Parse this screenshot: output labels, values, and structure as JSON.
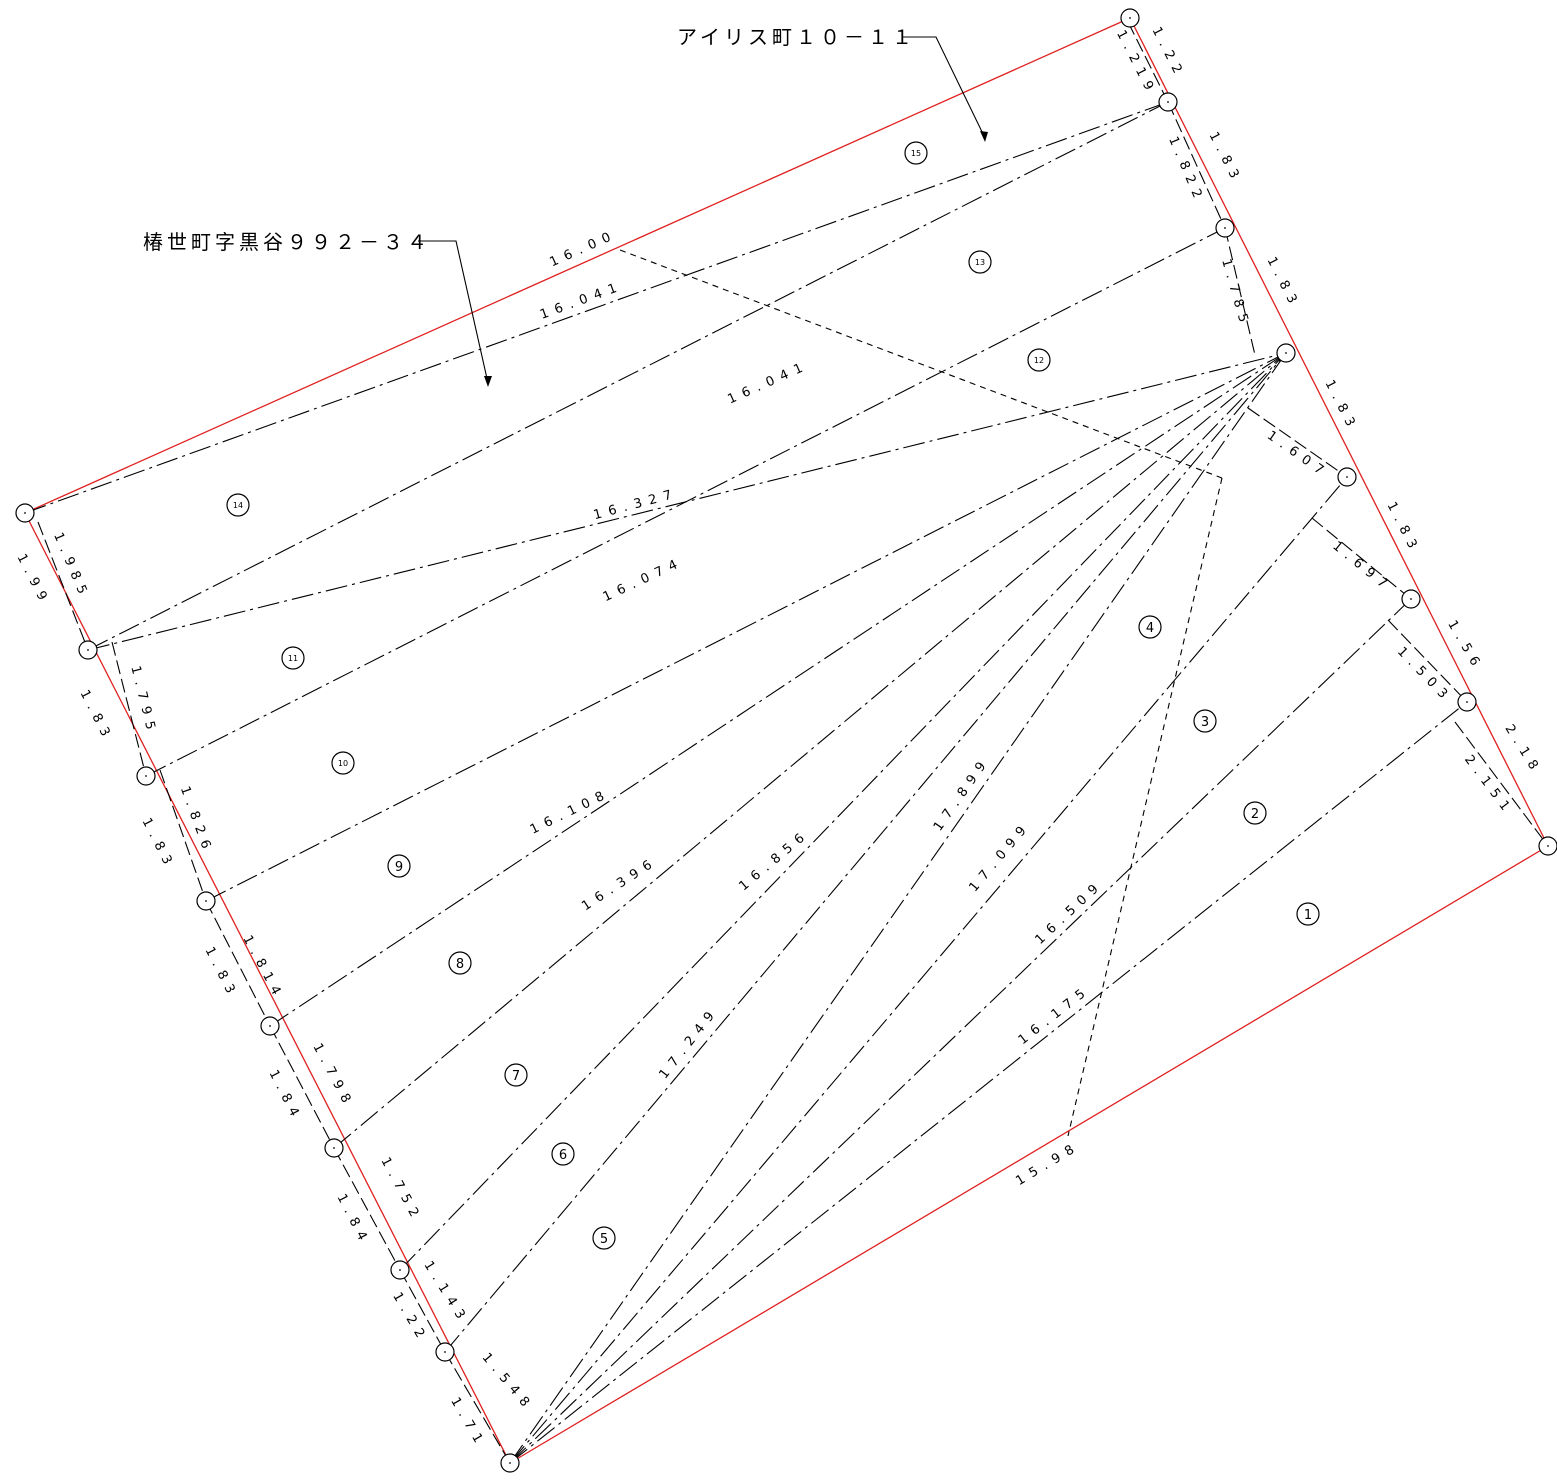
{
  "titles": {
    "adjacent_top_right": "アイリス町１０－１１",
    "adjacent_left": "椿世町字黒谷９９２－３４"
  },
  "lots": [
    "1",
    "2",
    "3",
    "4",
    "5",
    "6",
    "7",
    "8",
    "9",
    "10",
    "11",
    "12",
    "13",
    "14",
    "15"
  ],
  "boundary_labels": {
    "top": "16.00",
    "bottom": "15.98",
    "right": [
      "1.22",
      "1.83",
      "1.83",
      "1.83",
      "1.83",
      "1.56",
      "2.18"
    ],
    "left": [
      "1.99",
      "1.83",
      "1.83",
      "1.83",
      "1.84",
      "1.84",
      "1.22",
      "1.71"
    ]
  },
  "offset_labels": {
    "right": [
      "1.219",
      "1.822",
      "1.785",
      "1.607",
      "1.697",
      "1.503",
      "2.151"
    ],
    "left": [
      "1.985",
      "1.795",
      "1.826",
      "1.814",
      "1.798",
      "1.752",
      "1.143",
      "1.548"
    ]
  },
  "diagonal_labels": [
    "16.041",
    "16.041",
    "16.327",
    "16.074",
    "16.108",
    "16.396",
    "16.856",
    "17.249",
    "17.899",
    "17.099",
    "16.509",
    "16.175"
  ],
  "colors": {
    "boundary": "#e02020",
    "lines": "#000000"
  }
}
